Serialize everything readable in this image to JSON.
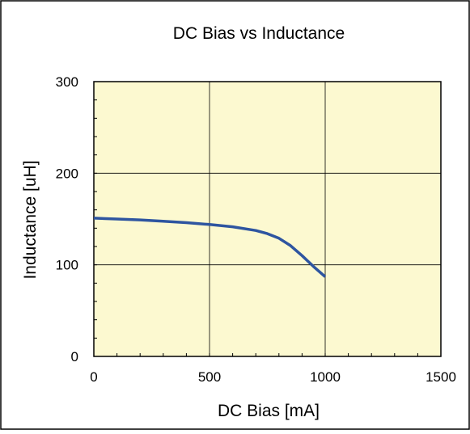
{
  "chart_data": {
    "type": "line",
    "title": "DC Bias vs Inductance",
    "xlabel": "DC Bias [mA]",
    "ylabel": "Inductance [uH]",
    "xlim": [
      0,
      1500
    ],
    "ylim": [
      0,
      300
    ],
    "x_ticks": [
      "0",
      "500",
      "1000",
      "1500"
    ],
    "y_ticks": [
      "0",
      "100",
      "200",
      "300"
    ],
    "x_tick_values": [
      0,
      500,
      1000,
      1500
    ],
    "y_tick_values": [
      0,
      100,
      200,
      300
    ],
    "x_minor_step": 100,
    "y_minor_step": 20,
    "grid": true,
    "colors": {
      "plot_background": "#fcf9d0",
      "line": "#2e55a0",
      "grid": "#000000",
      "frame": "#000000"
    },
    "series": [
      {
        "x": [
          0,
          100,
          200,
          300,
          400,
          500,
          600,
          700,
          750,
          800,
          850,
          900,
          950,
          1000
        ],
        "y": [
          151,
          150,
          149,
          147.5,
          146,
          144,
          141.5,
          137.5,
          134,
          129,
          121,
          110,
          98,
          87
        ]
      }
    ]
  }
}
